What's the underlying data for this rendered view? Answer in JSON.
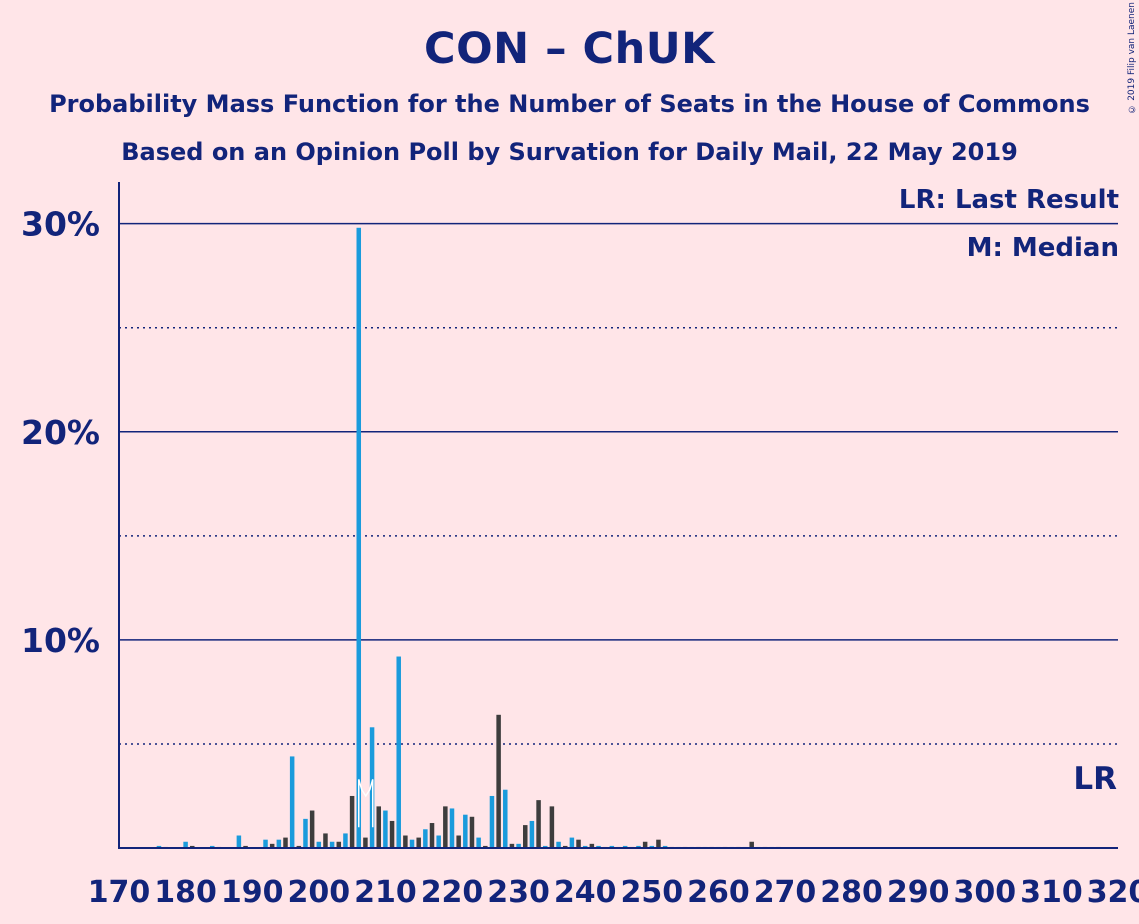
{
  "header": {
    "title": "CON – ChUK",
    "subtitle1": "Probability Mass Function for the Number of Seats in the House of Commons",
    "subtitle2": "Based on an Opinion Poll by Survation for Daily Mail, 22 May 2019",
    "copyright": "© 2019 Filip van Laenen"
  },
  "legend": {
    "last_result": "LR: Last Result",
    "median": "M: Median",
    "lr_marker": "LR"
  },
  "colors": {
    "background": "#ffe5e8",
    "text": "#12247a",
    "blue_bar": "#1a9bdc",
    "dark_bar": "#3d3d3d"
  },
  "chart_data": {
    "type": "bar",
    "title": "CON – ChUK",
    "subtitle": "Probability Mass Function for the Number of Seats in the House of Commons",
    "xlim": [
      170,
      320
    ],
    "ylim": [
      0,
      32
    ],
    "x_ticks": [
      170,
      180,
      190,
      200,
      210,
      220,
      230,
      240,
      250,
      260,
      270,
      280,
      290,
      300,
      310,
      320
    ],
    "y_ticks_labeled": [
      "10%",
      "20%",
      "30%"
    ],
    "y_ticks_solid": [
      10,
      20,
      30
    ],
    "y_ticks_dotted": [
      5,
      15,
      25
    ],
    "median_seat": 206,
    "last_result": "LR",
    "series": [
      {
        "color": "blue",
        "x": [
          176,
          180,
          184,
          188,
          192,
          194,
          196,
          198,
          200,
          202,
          204,
          206,
          208,
          210,
          212,
          214,
          216,
          218,
          220,
          222,
          224,
          226,
          228,
          230,
          232,
          234,
          236,
          238,
          240,
          242,
          244,
          246,
          248,
          250,
          252,
          254,
          256,
          258,
          260,
          262,
          264,
          266,
          268
        ],
        "values": [
          0.1,
          0.3,
          0.1,
          0.6,
          0.4,
          0.4,
          4.4,
          1.4,
          0.3,
          0.3,
          0.7,
          29.8,
          5.8,
          1.8,
          9.2,
          0.4,
          0.9,
          0.6,
          1.9,
          1.6,
          0.5,
          2.5,
          2.8,
          0.2,
          1.3,
          0.1,
          0.3,
          0.5,
          0.1,
          0.1,
          0.1,
          0.1,
          0.1,
          0.1,
          0.1,
          0.05,
          0.05,
          0.05,
          0.05,
          0.05,
          0.05,
          0.05,
          0.05
        ]
      },
      {
        "color": "dark",
        "x": [
          177,
          181,
          185,
          189,
          193,
          195,
          197,
          199,
          201,
          203,
          205,
          207,
          209,
          211,
          213,
          215,
          217,
          219,
          221,
          223,
          225,
          227,
          229,
          231,
          233,
          235,
          237,
          239,
          241,
          243,
          245,
          247,
          249,
          251,
          253,
          255,
          257,
          259,
          261,
          263,
          265,
          267,
          269
        ],
        "values": [
          0.05,
          0.1,
          0.05,
          0.1,
          0.2,
          0.5,
          0.1,
          1.8,
          0.7,
          0.3,
          2.5,
          0.5,
          2.0,
          1.3,
          0.6,
          0.5,
          1.2,
          2.0,
          0.6,
          1.5,
          0.1,
          6.4,
          0.2,
          1.1,
          2.3,
          2.0,
          0.1,
          0.4,
          0.2,
          0.05,
          0.05,
          0.05,
          0.3,
          0.4,
          0.05,
          0.05,
          0.05,
          0.05,
          0.05,
          0.05,
          0.3,
          0.05,
          0.05
        ]
      }
    ]
  }
}
